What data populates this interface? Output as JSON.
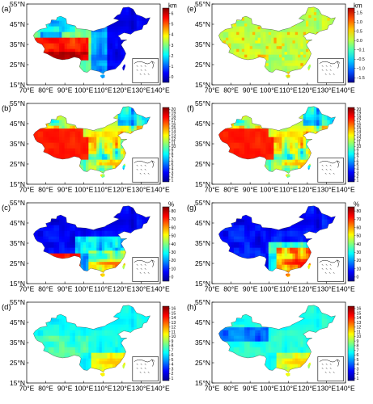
{
  "figure": {
    "lat_labels": [
      "55°N",
      "45°N",
      "35°N",
      "25°N",
      "15°N"
    ],
    "lon_labels": [
      "70°E",
      "80°E",
      "90°E",
      "100°E",
      "110°E",
      "120°E",
      "130°E",
      "140°E"
    ],
    "panels": [
      {
        "id": "a",
        "label": "(a)",
        "unit": "km",
        "colorbar_ticks": [
          "6",
          "5",
          "4",
          "3",
          "2",
          "1",
          "0"
        ],
        "colormap": [
          "#00008f",
          "#0000ff",
          "#0080ff",
          "#00ffff",
          "#80ff80",
          "#ffff00",
          "#ff8000",
          "#ff0000",
          "#800000"
        ],
        "map_scheme": "elevation"
      },
      {
        "id": "e",
        "label": "(e)",
        "unit": "km",
        "colorbar_ticks": [
          "1.5",
          "1.0",
          "0.5",
          "0.0",
          "−0.1",
          "−0.5",
          "−1.0",
          "−1.5"
        ],
        "colormap": [
          "#00008f",
          "#0050ff",
          "#00c8ff",
          "#40ffbf",
          "#bfff40",
          "#ffc800",
          "#ff5000",
          "#b00000"
        ],
        "map_scheme": "difference"
      },
      {
        "id": "b",
        "label": "(b)",
        "unit": "",
        "colorbar_ticks": [
          "20",
          "19",
          "18",
          "17",
          "16",
          "15",
          "14",
          "13",
          "12",
          "11",
          "10",
          "9",
          "8",
          "7",
          "6",
          "5",
          "4",
          "3",
          "2",
          "1"
        ],
        "colormap": [
          "#00008f",
          "#0000ff",
          "#0080ff",
          "#00ffff",
          "#80ff80",
          "#ffff00",
          "#ff8000",
          "#ff0000",
          "#800000"
        ],
        "map_scheme": "landcover"
      },
      {
        "id": "f",
        "label": "(f)",
        "unit": "",
        "colorbar_ticks": [
          "20",
          "19",
          "18",
          "17",
          "16",
          "15",
          "14",
          "13",
          "12",
          "11",
          "10",
          "9",
          "8",
          "7",
          "6",
          "5",
          "4",
          "3",
          "2",
          "1"
        ],
        "colormap": [
          "#00008f",
          "#0000ff",
          "#0080ff",
          "#00ffff",
          "#80ff80",
          "#ffff00",
          "#ff8000",
          "#ff0000",
          "#800000"
        ],
        "map_scheme": "landcover"
      },
      {
        "id": "c",
        "label": "(c)",
        "unit": "%",
        "colorbar_ticks": [
          "80",
          "70",
          "60",
          "50",
          "40",
          "30",
          "20",
          "10",
          "0"
        ],
        "colormap": [
          "#00008f",
          "#0000ff",
          "#0080ff",
          "#00ffff",
          "#80ff80",
          "#ffff00",
          "#ff8000",
          "#ff0000",
          "#800000"
        ],
        "map_scheme": "percent"
      },
      {
        "id": "g",
        "label": "(g)",
        "unit": "%",
        "colorbar_ticks": [
          "80",
          "70",
          "60",
          "50",
          "40",
          "30",
          "20",
          "10",
          "0"
        ],
        "colormap": [
          "#00008f",
          "#0000ff",
          "#0080ff",
          "#00ffff",
          "#80ff80",
          "#ffff00",
          "#ff8000",
          "#ff0000",
          "#800000"
        ],
        "map_scheme": "percent2"
      },
      {
        "id": "d",
        "label": "(d)",
        "unit": "",
        "colorbar_ticks": [
          "16",
          "15",
          "14",
          "13",
          "12",
          "11",
          "10",
          "9",
          "8",
          "7",
          "6",
          "5",
          "4",
          "3",
          "2",
          "1"
        ],
        "colormap": [
          "#00008f",
          "#0000ff",
          "#0080ff",
          "#00ffff",
          "#80ff80",
          "#ffff00",
          "#ff8000",
          "#ff0000",
          "#800000"
        ],
        "map_scheme": "soil"
      },
      {
        "id": "h",
        "label": "(h)",
        "unit": "",
        "colorbar_ticks": [
          "16",
          "15",
          "14",
          "13",
          "12",
          "11",
          "10",
          "9",
          "8",
          "7",
          "6",
          "5",
          "4",
          "3",
          "2",
          "1"
        ],
        "colormap": [
          "#00008f",
          "#0000ff",
          "#0080ff",
          "#00ffff",
          "#80ff80",
          "#ffff00",
          "#ff8000",
          "#ff0000",
          "#800000"
        ],
        "map_scheme": "soil2"
      }
    ]
  }
}
